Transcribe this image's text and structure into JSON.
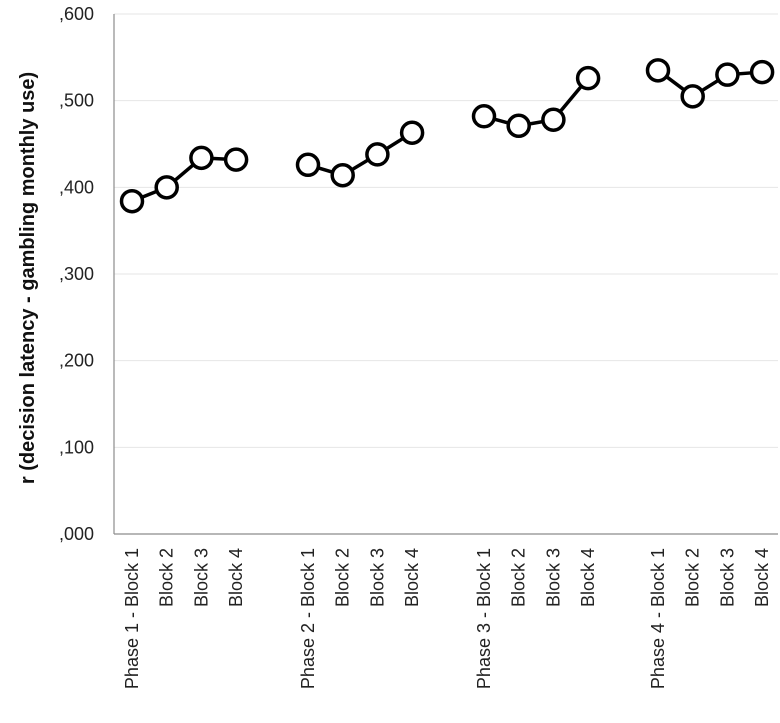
{
  "chart_data": {
    "type": "line",
    "title": "",
    "xlabel": "",
    "ylabel": "r (decision latency - gambling monthly use)",
    "ylim": [
      0,
      0.6
    ],
    "yticks": [
      0,
      0.1,
      0.2,
      0.3,
      0.4,
      0.5,
      0.6
    ],
    "ytick_labels": [
      ",000",
      ",100",
      ",200",
      ",300",
      ",400",
      ",500",
      ",600"
    ],
    "grid": true,
    "legend": "none",
    "line_color": "#000000",
    "marker_fill": "#ffffff",
    "categories": [
      "Phase 1 - Block 1",
      "Block 2",
      "Block 3",
      "Block 4",
      "Phase 2 - Block 1",
      "Block 2",
      "Block 3",
      "Block 4",
      "Phase 3 - Block 1",
      "Block 2",
      "Block 3",
      "Block 4",
      "Phase 4 - Block 1",
      "Block 2",
      "Block 3",
      "Block 4"
    ],
    "groups": [
      {
        "values": [
          0.384,
          0.4,
          0.434,
          0.432
        ]
      },
      {
        "values": [
          0.426,
          0.414,
          0.438,
          0.463
        ]
      },
      {
        "values": [
          0.482,
          0.471,
          0.478,
          0.526
        ]
      },
      {
        "values": [
          0.535,
          0.505,
          0.53,
          0.533
        ]
      }
    ]
  }
}
